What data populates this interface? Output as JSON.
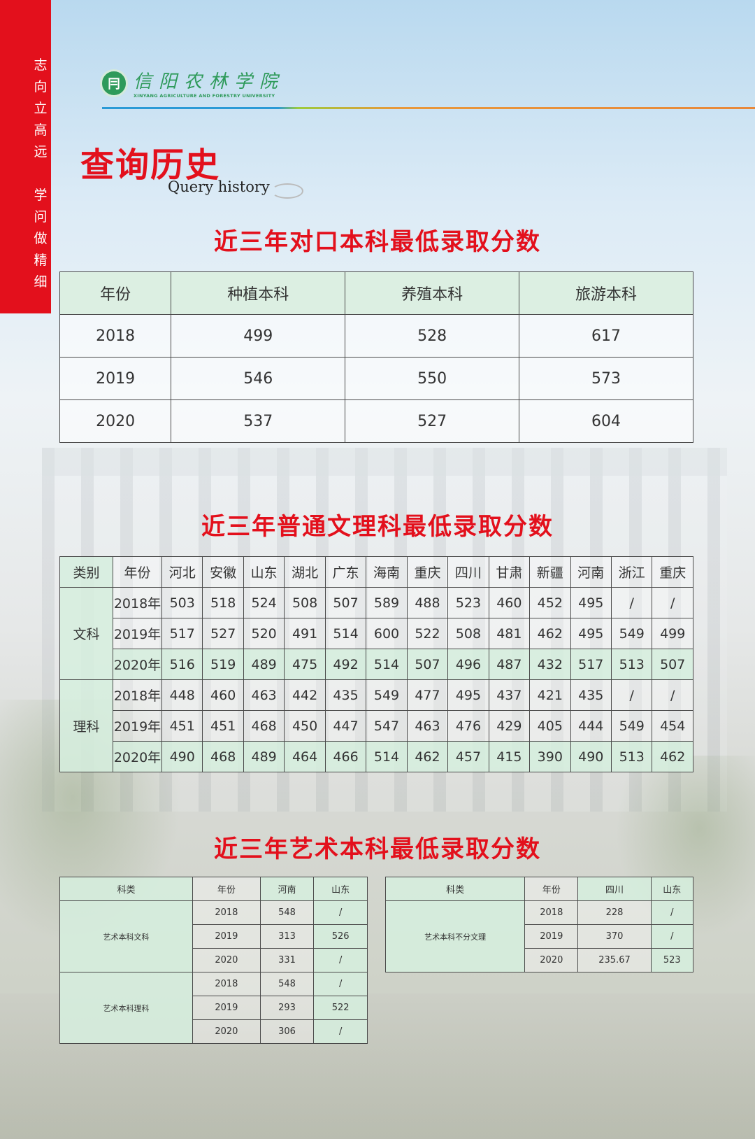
{
  "sidebar": {
    "motto": [
      "志",
      "向",
      "立",
      "高",
      "远",
      "",
      "学",
      "问",
      "做",
      "精",
      "细"
    ],
    "color": "#e3101c"
  },
  "logo": {
    "cn": "信阳农林学院",
    "en": "XINYANG AGRICULTURE AND FORESTRY UNIVERSITY"
  },
  "title": "查询历史",
  "subtitle": "Query history",
  "section1": {
    "title": "近三年对口本科最低录取分数",
    "headers": [
      "年份",
      "种植本科",
      "养殖本科",
      "旅游本科"
    ],
    "rows": [
      [
        "2018",
        "499",
        "528",
        "617"
      ],
      [
        "2019",
        "546",
        "550",
        "573"
      ],
      [
        "2020",
        "537",
        "527",
        "604"
      ]
    ]
  },
  "section2": {
    "title": "近三年普通文理科最低录取分数",
    "headers": [
      "类别",
      "年份",
      "河北",
      "安徽",
      "山东",
      "湖北",
      "广东",
      "海南",
      "重庆",
      "四川",
      "甘肃",
      "新疆",
      "河南",
      "浙江",
      "重庆"
    ],
    "groups": [
      {
        "name": "文科",
        "rows": [
          [
            "2018年",
            "503",
            "518",
            "524",
            "508",
            "507",
            "589",
            "488",
            "523",
            "460",
            "452",
            "495",
            "/",
            "/"
          ],
          [
            "2019年",
            "517",
            "527",
            "520",
            "491",
            "514",
            "600",
            "522",
            "508",
            "481",
            "462",
            "495",
            "549",
            "499"
          ],
          [
            "2020年",
            "516",
            "519",
            "489",
            "475",
            "492",
            "514",
            "507",
            "496",
            "487",
            "432",
            "517",
            "513",
            "507"
          ]
        ]
      },
      {
        "name": "理科",
        "rows": [
          [
            "2018年",
            "448",
            "460",
            "463",
            "442",
            "435",
            "549",
            "477",
            "495",
            "437",
            "421",
            "435",
            "/",
            "/"
          ],
          [
            "2019年",
            "451",
            "451",
            "468",
            "450",
            "447",
            "547",
            "463",
            "476",
            "429",
            "405",
            "444",
            "549",
            "454"
          ],
          [
            "2020年",
            "490",
            "468",
            "489",
            "464",
            "466",
            "514",
            "462",
            "457",
            "415",
            "390",
            "490",
            "513",
            "462"
          ]
        ]
      }
    ]
  },
  "section3": {
    "title": "近三年艺术本科最低录取分数",
    "tables": [
      {
        "headers": [
          "科类",
          "年份",
          "河南",
          "山东"
        ],
        "groups": [
          {
            "name": "艺术本科文科",
            "rows": [
              [
                "2018",
                "548",
                "/"
              ],
              [
                "2019",
                "313",
                "526"
              ],
              [
                "2020",
                "331",
                "/"
              ]
            ]
          },
          {
            "name": "艺术本科理科",
            "rows": [
              [
                "2018",
                "548",
                "/"
              ],
              [
                "2019",
                "293",
                "522"
              ],
              [
                "2020",
                "306",
                "/"
              ]
            ]
          }
        ]
      },
      {
        "headers": [
          "科类",
          "年份",
          "四川",
          "山东"
        ],
        "groups": [
          {
            "name": "艺术本科不分文理",
            "rows": [
              [
                "2018",
                "228",
                "/"
              ],
              [
                "2019",
                "370",
                "/"
              ],
              [
                "2020",
                "235.67",
                "523"
              ]
            ]
          }
        ]
      }
    ]
  }
}
